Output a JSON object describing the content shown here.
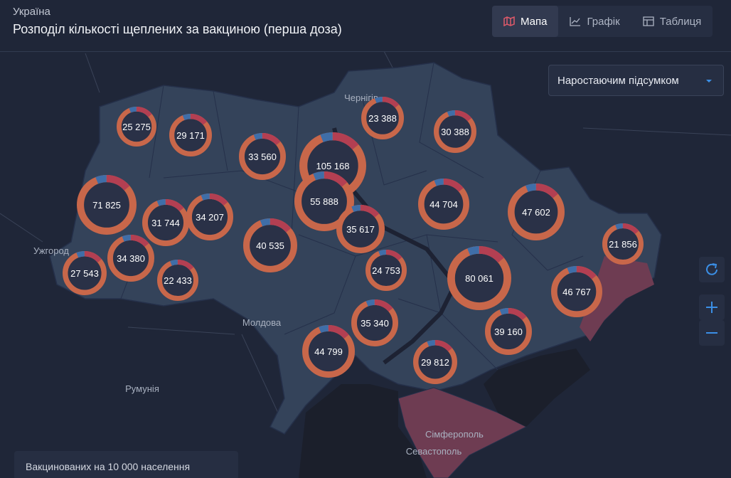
{
  "header": {
    "region": "Україна",
    "title": "Розподіл кількості щеплених за вакциною (перша доза)"
  },
  "tabs": [
    "Мапа",
    "Графік",
    "Таблиця"
  ],
  "dropdown": "Наростаючим підсумком",
  "legend": "Вакцинованих на 10 000 населення",
  "places": [
    "Ужгород",
    "Молдова",
    "Румунія",
    "Сімферополь",
    "Севастополь",
    "Чернігів"
  ],
  "regions": [
    "25 275",
    "29 171",
    "33 560",
    "105 168",
    "23 388",
    "30 388",
    "71 825",
    "55 888",
    "31 744",
    "34 207",
    "44 704",
    "47 602",
    "35 617",
    "40 535",
    "21 856",
    "34 380",
    "27 543",
    "22 433",
    "24 753",
    "80 061",
    "46 767",
    "35 340",
    "39 160",
    "44 799",
    "29 812"
  ]
}
